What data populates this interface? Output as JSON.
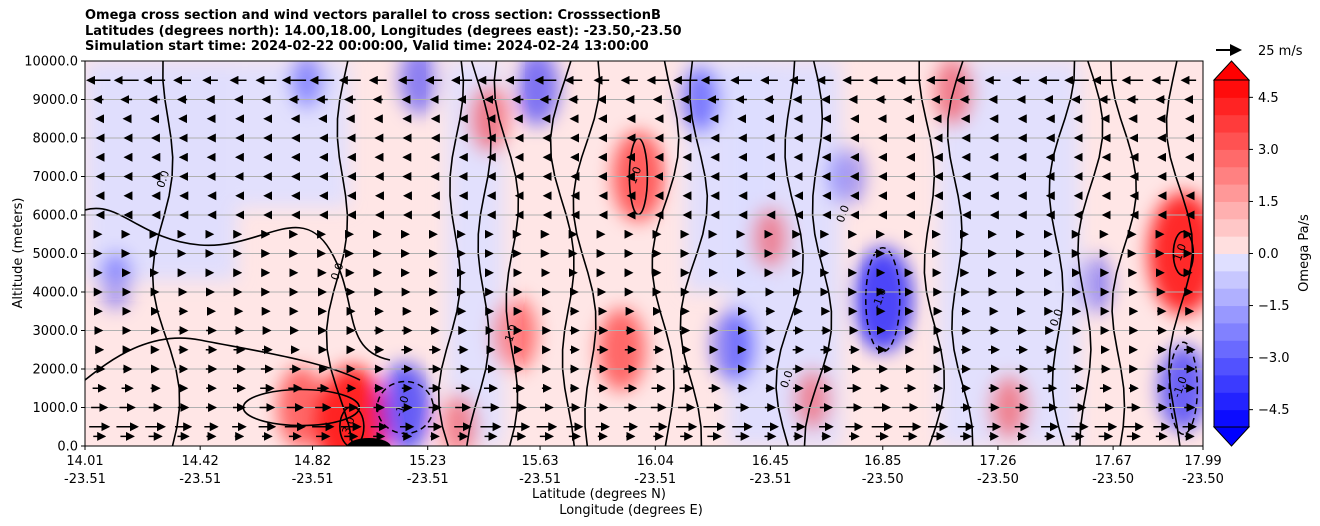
{
  "chart_data": {
    "type": "heatmap",
    "title_lines": [
      "Omega cross section and wind vectors parallel to cross section: CrosssectionB",
      "Latitudes (degrees north): 14.00,18.00, Longitudes (degrees east): -23.50,-23.50",
      "Simulation start time: 2024-02-22 00:00:00, Valid time: 2024-02-24 13:00:00"
    ],
    "ylabel": "Altitude (meters)",
    "xlabel_lat": "Latitude (degrees N)",
    "xlabel_lon": "Longitude (degrees E)",
    "ylim": [
      0,
      10000
    ],
    "yticks": [
      "0.0",
      "1000.0",
      "2000.0",
      "3000.0",
      "4000.0",
      "5000.0",
      "6000.0",
      "7000.0",
      "8000.0",
      "9000.0",
      "10000.0"
    ],
    "xlim": [
      14.01,
      17.99
    ],
    "xticks": [
      {
        "lat": "14.01",
        "lon": "-23.51"
      },
      {
        "lat": "14.42",
        "lon": "-23.51"
      },
      {
        "lat": "14.82",
        "lon": "-23.51"
      },
      {
        "lat": "15.23",
        "lon": "-23.51"
      },
      {
        "lat": "15.63",
        "lon": "-23.51"
      },
      {
        "lat": "16.04",
        "lon": "-23.51"
      },
      {
        "lat": "16.45",
        "lon": "-23.51"
      },
      {
        "lat": "16.85",
        "lon": "-23.50"
      },
      {
        "lat": "17.26",
        "lon": "-23.50"
      },
      {
        "lat": "17.67",
        "lon": "-23.50"
      },
      {
        "lat": "17.99",
        "lon": "-23.50"
      }
    ],
    "grid": "horizontal",
    "colorbar": {
      "label": "Omega Pa/s",
      "range": [
        -5.0,
        5.0
      ],
      "levels": 20,
      "ticks": [
        "4.5",
        "3.0",
        "1.5",
        "0.0",
        "−1.5",
        "−3.0",
        "−4.5"
      ],
      "tick_values": [
        4.5,
        3.0,
        1.5,
        0.0,
        -1.5,
        -3.0,
        -4.5
      ],
      "positive_color": "#ff0000",
      "negative_color": "#0000ff"
    },
    "quiver_key": "25 m/s",
    "contour_labels": [
      "0.0",
      "1.0",
      "-1.0",
      "3.0",
      "2.0"
    ],
    "features": [
      {
        "lat": 14.96,
        "alt": 500,
        "omega": 3.2
      },
      {
        "lat": 14.78,
        "alt": 1000,
        "omega": 1.4
      },
      {
        "lat": 15.15,
        "alt": 1000,
        "omega": -1.6
      },
      {
        "lat": 16.85,
        "alt": 3800,
        "omega": -2.0
      },
      {
        "lat": 17.92,
        "alt": 5000,
        "omega": 2.5
      },
      {
        "lat": 17.92,
        "alt": 1500,
        "omega": -1.5
      },
      {
        "lat": 15.98,
        "alt": 7000,
        "omega": 1.6
      },
      {
        "lat": 15.92,
        "alt": 2500,
        "omega": 1.4
      },
      {
        "lat": 15.54,
        "alt": 2900,
        "omega": 1.2
      },
      {
        "lat": 15.45,
        "alt": 8500,
        "omega": 1.0
      },
      {
        "lat": 15.62,
        "alt": 9300,
        "omega": -1.2
      },
      {
        "lat": 15.2,
        "alt": 9500,
        "omega": -1.0
      },
      {
        "lat": 16.2,
        "alt": 9000,
        "omega": -1.0
      },
      {
        "lat": 16.32,
        "alt": 2600,
        "omega": -1.2
      },
      {
        "lat": 17.1,
        "alt": 9200,
        "omega": 1.0
      },
      {
        "lat": 16.72,
        "alt": 7000,
        "omega": -0.8
      },
      {
        "lat": 17.3,
        "alt": 1000,
        "omega": 0.9
      },
      {
        "lat": 17.6,
        "alt": 4200,
        "omega": -0.8
      },
      {
        "lat": 14.12,
        "alt": 4300,
        "omega": -0.7
      },
      {
        "lat": 14.8,
        "alt": 9500,
        "omega": -0.7
      },
      {
        "lat": 15.34,
        "alt": 500,
        "omega": 0.9
      },
      {
        "lat": 16.45,
        "alt": 5400,
        "omega": 0.8
      },
      {
        "lat": 16.6,
        "alt": 1200,
        "omega": 0.8
      }
    ],
    "wind_rows": [
      {
        "alt": 250,
        "speed": 10
      },
      {
        "alt": 500,
        "speed": 16
      },
      {
        "alt": 1000,
        "speed": 12
      },
      {
        "alt": 1500,
        "speed": 10
      },
      {
        "alt": 2000,
        "speed": 9
      },
      {
        "alt": 2500,
        "speed": 8
      },
      {
        "alt": 3000,
        "speed": 7
      },
      {
        "alt": 3500,
        "speed": 6
      },
      {
        "alt": 4000,
        "speed": 5
      },
      {
        "alt": 4500,
        "speed": 4
      },
      {
        "alt": 5000,
        "speed": 3
      },
      {
        "alt": 5500,
        "speed": 2
      },
      {
        "alt": 6000,
        "speed": -2
      },
      {
        "alt": 6500,
        "speed": -3
      },
      {
        "alt": 7000,
        "speed": -4
      },
      {
        "alt": 7500,
        "speed": -4
      },
      {
        "alt": 8000,
        "speed": -4
      },
      {
        "alt": 8500,
        "speed": -5
      },
      {
        "alt": 9000,
        "speed": -8
      },
      {
        "alt": 9500,
        "speed": -18
      }
    ]
  }
}
